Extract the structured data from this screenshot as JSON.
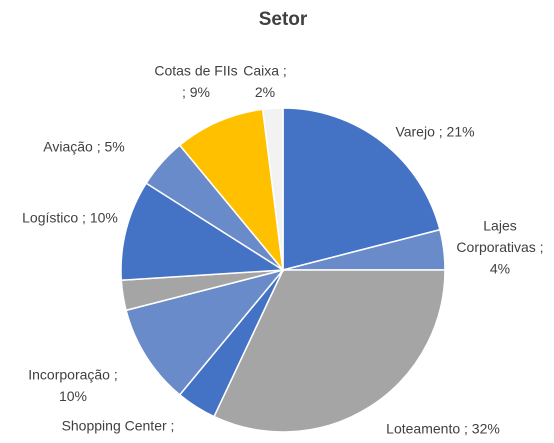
{
  "chart_data": {
    "type": "pie",
    "title": "Setor",
    "values": [
      21,
      4,
      32,
      4,
      10,
      3,
      10,
      5,
      9,
      2
    ],
    "value_labels": [
      [
        "Varejo ; 21%"
      ],
      [
        "Lajes",
        "Corporativas ;",
        "4%"
      ],
      [
        "Loteamento ; 32%"
      ],
      [
        "Shopping Center ;"
      ],
      [
        "Incorporação ;",
        "10%"
      ],
      null,
      [
        "Logístico ; 10%"
      ],
      [
        "Aviação ; 5%"
      ],
      [
        "Cotas de FIIs",
        "; 9%"
      ],
      [
        "Caixa ;",
        "2%"
      ]
    ],
    "colors": [
      "#4472c4",
      "#6a8bc9",
      "#a5a5a5",
      "#4472c4",
      "#6a8bc9",
      "#a5a5a5",
      "#4472c4",
      "#6a8bc9",
      "#ffc000",
      "#f2f2f2"
    ]
  }
}
